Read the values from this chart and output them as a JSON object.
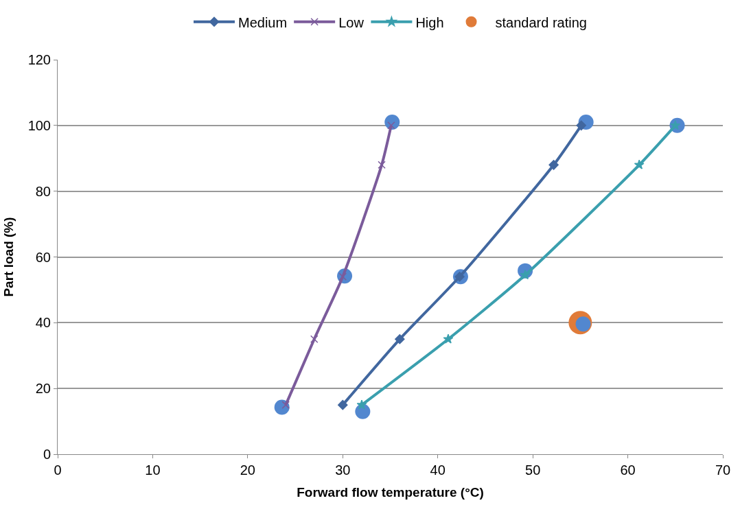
{
  "chart_data": {
    "type": "line",
    "xlabel": "Forward flow temperature (°C)",
    "ylabel": "Part load (%)",
    "xlim": [
      0,
      70
    ],
    "xticks": [
      0,
      10,
      20,
      30,
      40,
      50,
      60,
      70
    ],
    "ylim": [
      0,
      120
    ],
    "yticks": [
      0,
      20,
      40,
      60,
      80,
      100,
      120
    ],
    "grid": "y",
    "legend": "top",
    "series": [
      {
        "name": "Medium",
        "color": "#41679f",
        "marker": "diamond",
        "x": [
          30,
          36,
          42.3,
          52.2,
          55.1
        ],
        "values": [
          15,
          35,
          54,
          88,
          100
        ]
      },
      {
        "name": "Low",
        "color": "#7b5b9b",
        "marker": "cross",
        "x": [
          24,
          27,
          30,
          34.1,
          35.1
        ],
        "values": [
          15,
          35,
          54,
          88,
          100
        ]
      },
      {
        "name": "High",
        "color": "#3a9fae",
        "marker": "star",
        "x": [
          32,
          41.1,
          49.2,
          61.2,
          65
        ],
        "values": [
          15,
          35,
          54.5,
          88,
          100
        ]
      },
      {
        "type": "scatter",
        "color": "#5287cf",
        "marker": "circle",
        "x": [
          23.6,
          35.2,
          30.2,
          42.4,
          55.6,
          49.2,
          65.2,
          32.1,
          55.3
        ],
        "values": [
          14.3,
          101,
          54.2,
          54,
          101,
          55.8,
          100,
          13,
          39.6
        ]
      },
      {
        "name": "standard rating",
        "type": "scatter",
        "color": "#e07b39",
        "marker": "circle",
        "x": [
          55
        ],
        "values": [
          40
        ]
      }
    ]
  }
}
